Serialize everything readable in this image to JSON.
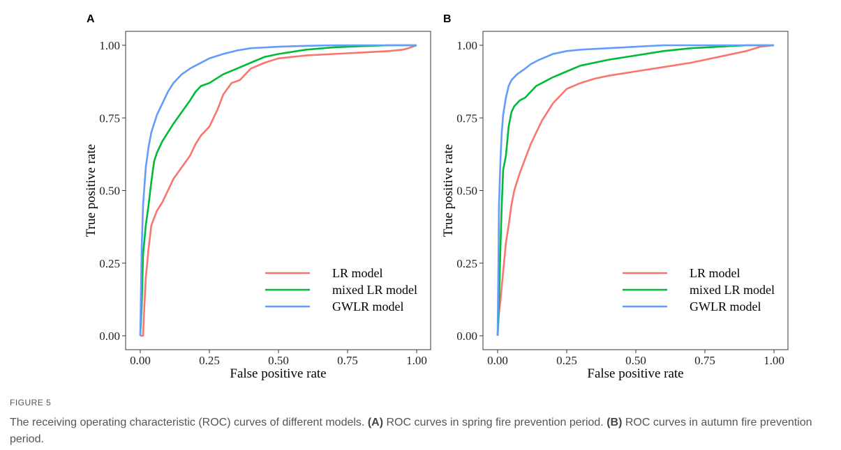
{
  "figure_label": "FIGURE 5",
  "caption": {
    "intro": "The receiving operating characteristic (ROC) curves of different models.",
    "a_tag": "(A)",
    "a_text": "ROC curves in spring fire prevention period.",
    "b_tag": "(B)",
    "b_text": "ROC curves in autumn fire prevention period."
  },
  "chart_data": [
    {
      "panel": "A",
      "type": "line",
      "xlabel": "False positive rate",
      "ylabel": "True positive rate",
      "xlim": [
        0,
        1
      ],
      "ylim": [
        0,
        1
      ],
      "xticks": [
        "0.00",
        "0.25",
        "0.50",
        "0.75",
        "1.00"
      ],
      "yticks": [
        "0.00",
        "0.25",
        "0.50",
        "0.75",
        "1.00"
      ],
      "grid": false,
      "legend_position": "bottom-right",
      "series": [
        {
          "name": "LR model",
          "color": "#F8766D",
          "x": [
            0,
            0.01,
            0.012,
            0.02,
            0.03,
            0.04,
            0.06,
            0.08,
            0.1,
            0.12,
            0.15,
            0.18,
            0.2,
            0.22,
            0.25,
            0.28,
            0.3,
            0.33,
            0.36,
            0.4,
            0.45,
            0.5,
            0.6,
            0.7,
            0.8,
            0.9,
            0.95,
            0.97,
            1.0
          ],
          "y": [
            0,
            0,
            0.05,
            0.2,
            0.3,
            0.38,
            0.43,
            0.46,
            0.5,
            0.54,
            0.58,
            0.62,
            0.66,
            0.69,
            0.72,
            0.78,
            0.83,
            0.87,
            0.88,
            0.92,
            0.94,
            0.955,
            0.965,
            0.97,
            0.975,
            0.98,
            0.985,
            0.99,
            1.0
          ]
        },
        {
          "name": "mixed LR model",
          "color": "#00BA38",
          "x": [
            0,
            0.005,
            0.01,
            0.02,
            0.03,
            0.04,
            0.05,
            0.06,
            0.08,
            0.1,
            0.12,
            0.15,
            0.18,
            0.2,
            0.22,
            0.25,
            0.3,
            0.35,
            0.4,
            0.45,
            0.5,
            0.6,
            0.7,
            0.8,
            0.9,
            1.0
          ],
          "y": [
            0,
            0.1,
            0.28,
            0.38,
            0.45,
            0.53,
            0.6,
            0.63,
            0.67,
            0.7,
            0.73,
            0.77,
            0.81,
            0.84,
            0.86,
            0.87,
            0.9,
            0.92,
            0.94,
            0.96,
            0.97,
            0.985,
            0.993,
            0.997,
            1.0,
            1.0
          ]
        },
        {
          "name": "GWLR model",
          "color": "#619CFF",
          "x": [
            0,
            0.005,
            0.01,
            0.02,
            0.03,
            0.04,
            0.06,
            0.08,
            0.1,
            0.12,
            0.15,
            0.18,
            0.2,
            0.25,
            0.3,
            0.35,
            0.4,
            0.5,
            0.6,
            0.7,
            0.8,
            0.9,
            1.0
          ],
          "y": [
            0,
            0.3,
            0.45,
            0.58,
            0.65,
            0.7,
            0.76,
            0.8,
            0.84,
            0.87,
            0.9,
            0.92,
            0.93,
            0.955,
            0.97,
            0.982,
            0.99,
            0.995,
            0.998,
            1.0,
            1.0,
            1.0,
            1.0
          ]
        }
      ]
    },
    {
      "panel": "B",
      "type": "line",
      "xlabel": "False positive rate",
      "ylabel": "True positive rate",
      "xlim": [
        0,
        1
      ],
      "ylim": [
        0,
        1
      ],
      "xticks": [
        "0.00",
        "0.25",
        "0.50",
        "0.75",
        "1.00"
      ],
      "yticks": [
        "0.00",
        "0.25",
        "0.50",
        "0.75",
        "1.00"
      ],
      "grid": false,
      "legend_position": "bottom-right",
      "series": [
        {
          "name": "LR model",
          "color": "#F8766D",
          "x": [
            0,
            0.005,
            0.01,
            0.02,
            0.03,
            0.04,
            0.05,
            0.06,
            0.08,
            0.1,
            0.12,
            0.14,
            0.16,
            0.18,
            0.2,
            0.22,
            0.25,
            0.3,
            0.35,
            0.4,
            0.5,
            0.6,
            0.7,
            0.8,
            0.9,
            0.95,
            1.0
          ],
          "y": [
            0,
            0.08,
            0.12,
            0.22,
            0.32,
            0.38,
            0.45,
            0.5,
            0.56,
            0.61,
            0.66,
            0.7,
            0.74,
            0.77,
            0.8,
            0.82,
            0.85,
            0.87,
            0.885,
            0.895,
            0.91,
            0.925,
            0.94,
            0.96,
            0.98,
            0.995,
            1.0
          ]
        },
        {
          "name": "mixed LR model",
          "color": "#00BA38",
          "x": [
            0,
            0.005,
            0.01,
            0.015,
            0.02,
            0.03,
            0.04,
            0.05,
            0.06,
            0.08,
            0.1,
            0.12,
            0.14,
            0.16,
            0.2,
            0.25,
            0.3,
            0.4,
            0.5,
            0.6,
            0.7,
            0.8,
            0.9,
            1.0
          ],
          "y": [
            0,
            0.12,
            0.3,
            0.45,
            0.57,
            0.62,
            0.72,
            0.77,
            0.79,
            0.81,
            0.82,
            0.84,
            0.86,
            0.87,
            0.89,
            0.91,
            0.93,
            0.95,
            0.965,
            0.98,
            0.99,
            0.995,
            1.0,
            1.0
          ]
        },
        {
          "name": "GWLR model",
          "color": "#619CFF",
          "x": [
            0,
            0.003,
            0.005,
            0.01,
            0.015,
            0.02,
            0.03,
            0.04,
            0.05,
            0.07,
            0.1,
            0.12,
            0.15,
            0.2,
            0.25,
            0.3,
            0.4,
            0.5,
            0.6,
            0.7,
            0.8,
            0.9,
            1.0
          ],
          "y": [
            0,
            0.25,
            0.45,
            0.6,
            0.7,
            0.76,
            0.82,
            0.86,
            0.88,
            0.9,
            0.92,
            0.935,
            0.95,
            0.97,
            0.98,
            0.985,
            0.99,
            0.995,
            1.0,
            1.0,
            1.0,
            1.0,
            1.0
          ]
        }
      ]
    }
  ]
}
